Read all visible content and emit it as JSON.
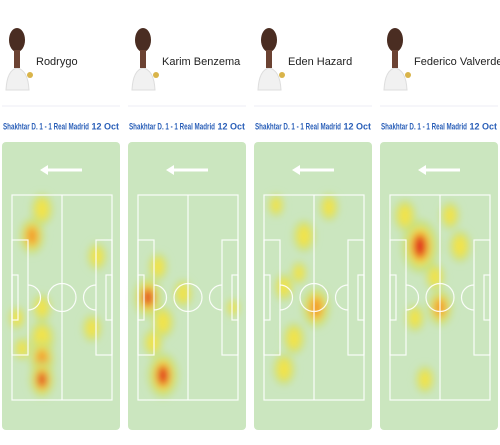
{
  "players": [
    {
      "name": "Rodrygo",
      "match": "Shakhtar D. 1 - 1 Real Madrid",
      "date": "12 Oct"
    },
    {
      "name": "Karim Benzema",
      "match": "Shakhtar D. 1 - 1 Real Madrid",
      "date": "12 Oct"
    },
    {
      "name": "Eden Hazard",
      "match": "Shakhtar D. 1 - 1 Real Madrid",
      "date": "12 Oct"
    },
    {
      "name": "Federico Valverde",
      "match": "Shakhtar D. 1 - 1 Real Madrid",
      "date": "12 Oct"
    }
  ]
}
